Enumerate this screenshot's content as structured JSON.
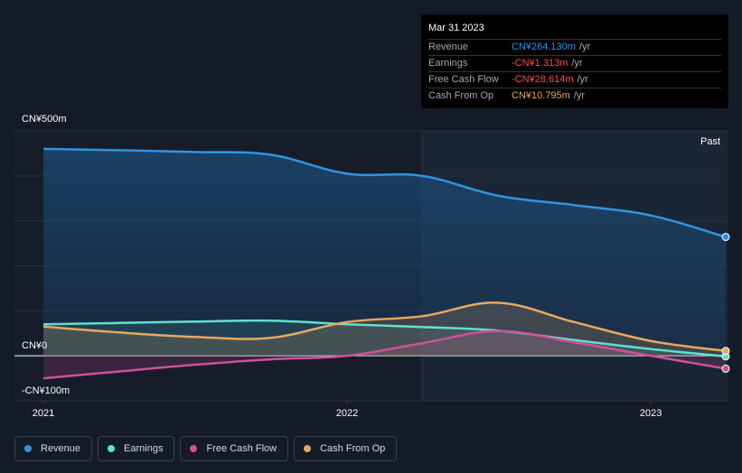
{
  "chart_data": {
    "type": "area",
    "currency_unit": "CN¥",
    "x_ticks": [
      "2021",
      "2022",
      "2023"
    ],
    "y_labels": {
      "top": "CN¥500m",
      "zero": "CN¥0",
      "bottom": "-CN¥100m"
    },
    "ylim": [
      -100,
      500
    ],
    "past_label": "Past",
    "series": [
      {
        "name": "Revenue",
        "color": "#2f95e0",
        "points": [
          [
            "2020-12-31",
            460
          ],
          [
            "2021-03-31",
            457
          ],
          [
            "2021-06-30",
            453
          ],
          [
            "2021-09-30",
            447
          ],
          [
            "2021-12-31",
            405
          ],
          [
            "2022-03-31",
            400
          ],
          [
            "2022-06-30",
            356
          ],
          [
            "2022-09-30",
            335
          ],
          [
            "2022-12-31",
            312
          ],
          [
            "2023-03-31",
            264.13
          ]
        ]
      },
      {
        "name": "Earnings",
        "color": "#5fe0d0",
        "points": [
          [
            "2020-12-31",
            70
          ],
          [
            "2021-03-31",
            73
          ],
          [
            "2021-06-30",
            76
          ],
          [
            "2021-09-30",
            78
          ],
          [
            "2021-12-31",
            70
          ],
          [
            "2022-03-31",
            64
          ],
          [
            "2022-06-30",
            56
          ],
          [
            "2022-09-30",
            35
          ],
          [
            "2022-12-31",
            15
          ],
          [
            "2023-03-31",
            -1.313
          ]
        ]
      },
      {
        "name": "Free Cash Flow",
        "color": "#d0509a",
        "points": [
          [
            "2020-12-31",
            -50
          ],
          [
            "2021-03-31",
            -35
          ],
          [
            "2021-06-30",
            -20
          ],
          [
            "2021-09-30",
            -8
          ],
          [
            "2021-12-31",
            0
          ],
          [
            "2022-03-31",
            28
          ],
          [
            "2022-06-30",
            55
          ],
          [
            "2022-09-30",
            30
          ],
          [
            "2022-12-31",
            0
          ],
          [
            "2023-03-31",
            -28.614
          ]
        ]
      },
      {
        "name": "Cash From Op",
        "color": "#e8a860",
        "points": [
          [
            "2020-12-31",
            65
          ],
          [
            "2021-03-31",
            52
          ],
          [
            "2021-06-30",
            42
          ],
          [
            "2021-09-30",
            40
          ],
          [
            "2021-12-31",
            75
          ],
          [
            "2022-03-31",
            88
          ],
          [
            "2022-06-30",
            118
          ],
          [
            "2022-09-30",
            75
          ],
          [
            "2022-12-31",
            33
          ],
          [
            "2023-03-31",
            10.795
          ]
        ]
      }
    ],
    "tooltip": {
      "date": "Mar 31 2023",
      "rows": [
        {
          "label": "Revenue",
          "value": "CN¥264.130m",
          "unit": "/yr",
          "color": "#2f95e0"
        },
        {
          "label": "Earnings",
          "value": "-CN¥1.313m",
          "unit": "/yr",
          "color": "#ff4d4d"
        },
        {
          "label": "Free Cash Flow",
          "value": "-CN¥28.614m",
          "unit": "/yr",
          "color": "#ff4d4d"
        },
        {
          "label": "Cash From Op",
          "value": "CN¥10.795m",
          "unit": "/yr",
          "color": "#e8a860"
        }
      ]
    }
  },
  "legend": [
    {
      "label": "Revenue",
      "color": "#2f95e0"
    },
    {
      "label": "Earnings",
      "color": "#5fe0d0"
    },
    {
      "label": "Free Cash Flow",
      "color": "#d0509a"
    },
    {
      "label": "Cash From Op",
      "color": "#e8a860"
    }
  ]
}
